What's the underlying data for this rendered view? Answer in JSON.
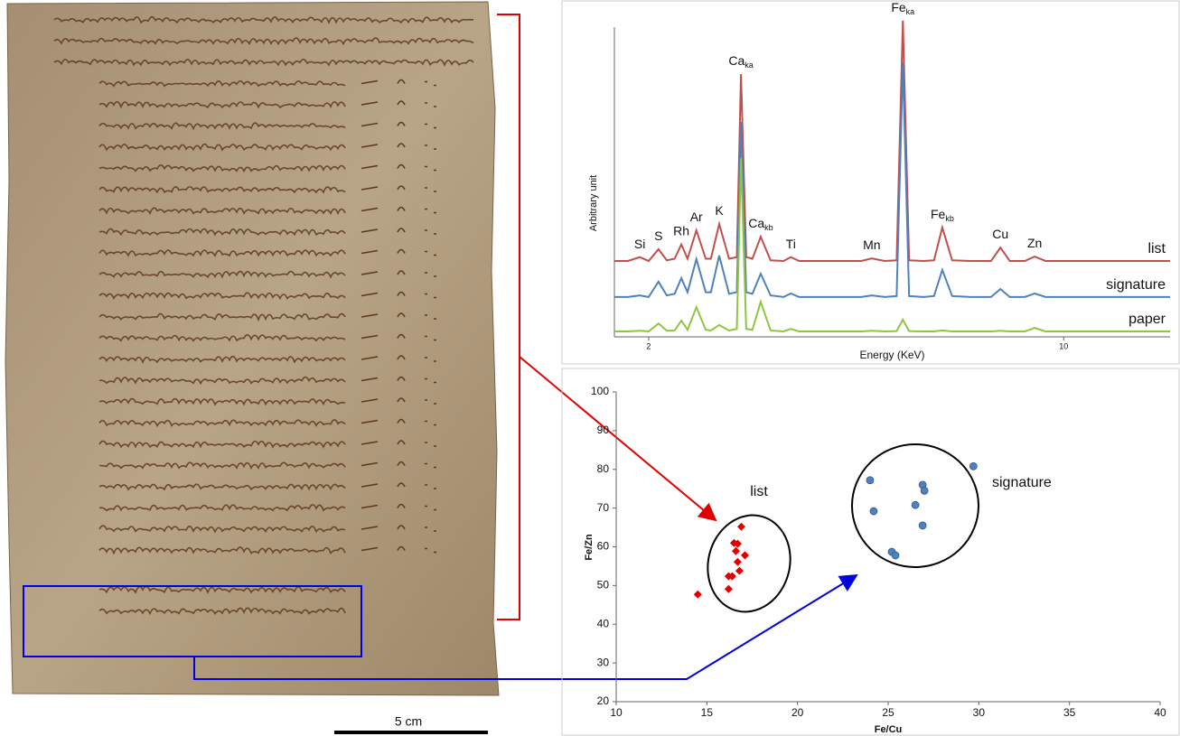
{
  "chart_data": [
    {
      "type": "line",
      "y_label": "Arbitrary unit",
      "x_label": "Energy (KeV)",
      "x": [
        1.34,
        1.6,
        1.83,
        2.0,
        2.19,
        2.35,
        2.5,
        2.63,
        2.75,
        2.92,
        3.1,
        3.2,
        3.36,
        3.55,
        3.7,
        3.78,
        3.88,
        4.0,
        4.16,
        4.35,
        4.6,
        4.74,
        4.9,
        5.5,
        6.1,
        6.3,
        6.55,
        6.78,
        6.9,
        7.02,
        7.3,
        7.5,
        7.66,
        7.85,
        8.2,
        8.6,
        8.78,
        8.96,
        9.25,
        9.44,
        9.65,
        10.5,
        11.5,
        12.05
      ],
      "xlim": [
        1.34,
        12.05
      ],
      "xticks": [
        2,
        10
      ],
      "ylim": [
        0,
        100
      ],
      "series": [
        {
          "name": "list",
          "color": "#c0504d",
          "values": [
            23.8,
            23.8,
            25,
            23.8,
            27.5,
            24,
            24.5,
            29,
            24.5,
            33.4,
            24.5,
            24.5,
            35.4,
            24.5,
            25,
            82.4,
            25,
            24.5,
            31.4,
            24,
            23.8,
            25,
            23.8,
            23.8,
            23.8,
            24.6,
            23.8,
            24,
            99.2,
            24,
            23.8,
            24,
            34.3,
            24,
            23.8,
            23.8,
            28,
            23.8,
            23.8,
            25.2,
            23.8,
            23.8,
            23.8,
            23.8
          ]
        },
        {
          "name": "signature",
          "color": "#4f81bd",
          "values": [
            12.5,
            12.5,
            13,
            12.5,
            17.3,
            13,
            13.5,
            18.4,
            14,
            24.4,
            14,
            14,
            25.5,
            13.5,
            14,
            67.4,
            14,
            13.5,
            19.8,
            13,
            12.5,
            13.6,
            12.5,
            12.5,
            12.5,
            13,
            12.5,
            12.8,
            86.1,
            12.8,
            12.5,
            12.8,
            21,
            12.8,
            12.5,
            12.5,
            15,
            12.5,
            12.5,
            13.6,
            12.5,
            12.5,
            12.5,
            12.5
          ]
        },
        {
          "name": "paper",
          "color": "#8dc63f",
          "values": [
            1.7,
            1.7,
            1.9,
            1.7,
            4.2,
            1.9,
            2,
            5.1,
            2.2,
            9.3,
            2.2,
            2,
            3.7,
            2,
            2.5,
            56,
            2.5,
            2.2,
            11,
            2,
            1.7,
            2.5,
            1.7,
            1.7,
            1.7,
            1.9,
            1.7,
            1.8,
            5.4,
            1.8,
            1.7,
            1.7,
            2,
            1.7,
            1.7,
            1.7,
            1.9,
            1.7,
            1.7,
            2.8,
            1.7,
            1.7,
            1.7,
            1.7
          ]
        }
      ],
      "annotations": [
        {
          "text": "Si",
          "x": 1.83
        },
        {
          "text": "S",
          "x": 2.19
        },
        {
          "text": "Rh",
          "x": 2.63
        },
        {
          "text": "Ar",
          "x": 2.92
        },
        {
          "text": "K",
          "x": 3.36
        },
        {
          "text": "Ca",
          "sub": "ka",
          "x": 3.78
        },
        {
          "text": "Ca",
          "sub": "kb",
          "x": 4.16
        },
        {
          "text": "Ti",
          "x": 4.74
        },
        {
          "text": "Mn",
          "x": 6.3
        },
        {
          "text": "Fe",
          "sub": "ka",
          "x": 6.9
        },
        {
          "text": "Fe",
          "sub": "kb",
          "x": 7.66
        },
        {
          "text": "Cu",
          "x": 8.78
        },
        {
          "text": "Zn",
          "x": 9.44
        }
      ]
    },
    {
      "type": "scatter",
      "x_label": "Fe/Cu",
      "y_label": "Fe/Zn",
      "xlim": [
        10,
        40
      ],
      "xticks": [
        10,
        15,
        20,
        25,
        30,
        35,
        40
      ],
      "ylim": [
        20,
        100
      ],
      "yticks": [
        20,
        30,
        40,
        50,
        60,
        70,
        80,
        90,
        100
      ],
      "series": [
        {
          "name": "list",
          "color": "#e00000",
          "marker": "diamond",
          "x": [
            14.5,
            16.2,
            16.2,
            16.4,
            16.7,
            17.1,
            16.6,
            16.5,
            16.7,
            16.9,
            16.8
          ],
          "values": [
            47.7,
            49.1,
            52.4,
            52.4,
            56.1,
            57.8,
            58.9,
            61.0,
            60.8,
            65.2,
            53.8
          ]
        },
        {
          "name": "signature",
          "color": "#4f81bd",
          "marker": "circle",
          "x": [
            24.0,
            24.2,
            26.9,
            27.0,
            26.5,
            26.9,
            25.2,
            25.4,
            29.7
          ],
          "values": [
            77.2,
            69.2,
            76.0,
            74.5,
            70.8,
            65.5,
            58.7,
            57.8,
            80.8
          ]
        }
      ]
    }
  ],
  "scale_bar": "5 cm"
}
